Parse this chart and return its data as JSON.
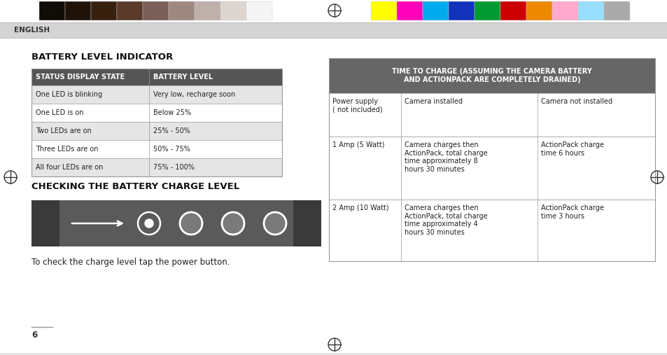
{
  "bg_color": "#ffffff",
  "header_bar_color": "#d4d4d4",
  "header_text": "ENGLISH",
  "header_text_color": "#333333",
  "color_swatches_left": [
    "#100c07",
    "#1e1209",
    "#38200f",
    "#5a3a2a",
    "#7a5e58",
    "#9e8880",
    "#c0b0aa",
    "#ddd5d0",
    "#f5f5f5"
  ],
  "color_swatches_right": [
    "#ffff00",
    "#ff00bb",
    "#00aaee",
    "#1133bb",
    "#009933",
    "#cc0000",
    "#ee8800",
    "#ffaacc",
    "#99ddff",
    "#aaaaaa"
  ],
  "title1": "BATTERY LEVEL INDICATOR",
  "title2": "CHECKING THE BATTERY CHARGE LEVEL",
  "left_table_header_bg": "#555555",
  "left_table_header_text_color": "#ffffff",
  "left_table_row_bg_alt": "#e5e5e5",
  "left_table_row_bg_norm": "#ffffff",
  "left_table_border": "#999999",
  "left_table_headers": [
    "STATUS DISPLAY STATE",
    "BATTERY LEVEL"
  ],
  "left_table_rows": [
    [
      "One LED is blinking",
      "Very low, recharge soon"
    ],
    [
      "One LED is on",
      "Below 25%"
    ],
    [
      "Two LEDs are on",
      "25% - 50%"
    ],
    [
      "Three LEDs are on",
      "50% - 75%"
    ],
    [
      "All four LEDs are on",
      "75% - 100%"
    ]
  ],
  "right_table_header_bg": "#666666",
  "right_table_header_text": "TIME TO CHARGE (ASSUMING THE CAMERA BATTERY\nAND ACTIONPACK ARE COMPLETELY DRAINED)",
  "right_table_header_text_color": "#ffffff",
  "right_table_border": "#999999",
  "right_table_col1": [
    "Power supply\n( not included)",
    "1 Amp (5 Watt)",
    "2 Amp (10 Watt)"
  ],
  "right_table_col2": [
    "Camera installed",
    "Camera charges then\nActionPack, total charge\ntime approximately 8\nhours 30 minutes",
    "Camera charges then\nActionPack, total charge\ntime approximately 4\nhours 30 minutes"
  ],
  "right_table_col3": [
    "Camera not installed",
    "ActionPack charge\ntime 6 hours",
    "ActionPack charge\ntime 3 hours"
  ],
  "battery_image_bg": "#5a5a5a",
  "caption_normal": "To check the charge level tap the power button.",
  "page_number": "6"
}
